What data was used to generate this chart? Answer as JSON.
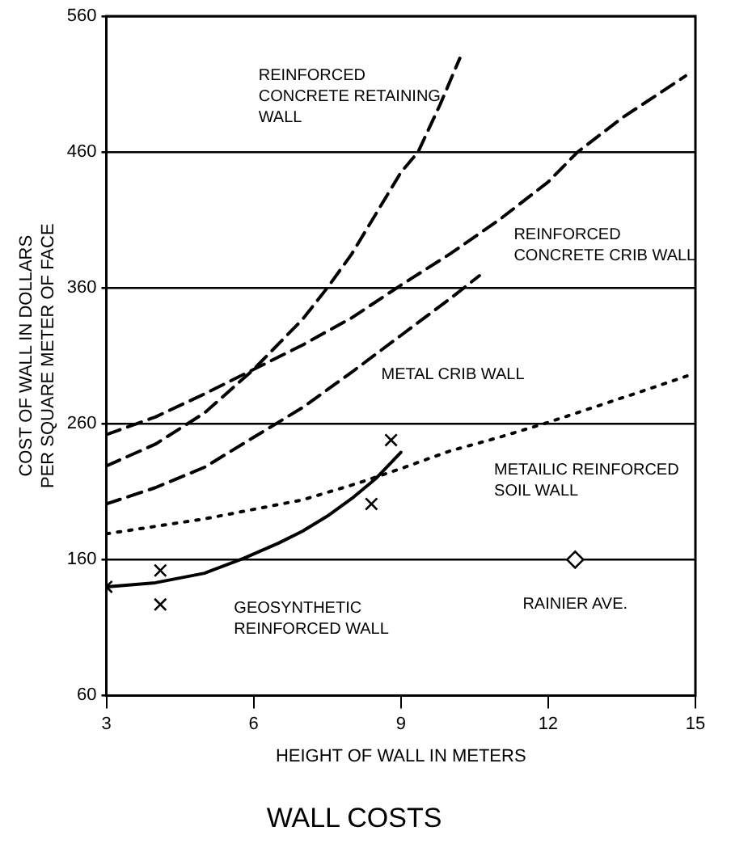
{
  "chart_data": {
    "type": "line",
    "title": "WALL COSTS",
    "xlabel": "HEIGHT OF WALL IN METERS",
    "ylabel": "COST OF WALL IN DOLLARS\nPER SQUARE METER OF FACE",
    "xlim": [
      3,
      15
    ],
    "xticks": [
      3,
      6,
      9,
      12,
      15
    ],
    "ylim": [
      60,
      560
    ],
    "yticks": [
      60,
      160,
      260,
      360,
      460,
      560
    ],
    "grid": "y",
    "legend": false,
    "series": [
      {
        "name": "REINFORCED CONCRETE RETAINING WALL",
        "color": "#000000",
        "line_style": "dashed",
        "marker": "none",
        "x": [
          3,
          4,
          5,
          6,
          7,
          7.5,
          8,
          8.5,
          9,
          9.35,
          9.8,
          10.2
        ],
        "values": [
          229,
          245,
          268,
          300,
          337,
          360,
          385,
          415,
          445,
          460,
          495,
          529
        ]
      },
      {
        "name": "REINFORCED CONCRETE CRIB WALL",
        "color": "#000000",
        "line_style": "dashed",
        "marker": "none",
        "x": [
          3,
          4,
          5,
          6,
          7,
          8,
          9,
          10,
          11,
          12,
          12.6,
          13.5,
          14.8
        ],
        "values": [
          252,
          265,
          282,
          300,
          318,
          338,
          362,
          385,
          410,
          438,
          460,
          485,
          516
        ]
      },
      {
        "name": "METAL CRIB WALL",
        "color": "#000000",
        "line_style": "dashed",
        "marker": "none",
        "x": [
          3,
          4,
          5,
          6,
          7,
          8,
          9,
          10,
          10.6
        ],
        "values": [
          201,
          213,
          228,
          250,
          272,
          298,
          325,
          352,
          369
        ]
      },
      {
        "name": "METAILIC REINFORCED SOIL WALL",
        "color": "#000000",
        "line_style": "dotted",
        "marker": "none",
        "x": [
          3,
          5,
          7,
          8.1,
          9,
          10,
          11,
          12,
          13,
          14,
          14.9
        ],
        "values": [
          179,
          190,
          204,
          216,
          227,
          240,
          250,
          261,
          273,
          285,
          296
        ]
      },
      {
        "name": "GEOSYNTHETIC REINFORCED WALL",
        "color": "#000000",
        "line_style": "solid",
        "marker": "none",
        "x": [
          3,
          4,
          5,
          5.8,
          6.5,
          7,
          7.5,
          8,
          8.5,
          9
        ],
        "values": [
          140,
          143,
          150,
          161,
          172,
          181,
          192,
          205,
          220,
          239
        ]
      },
      {
        "type": "scatter",
        "color": "#000000",
        "marker": "cross",
        "x": [
          3,
          4.1,
          4.1,
          8.8,
          8.4
        ],
        "values": [
          140,
          152,
          127,
          248,
          201
        ]
      },
      {
        "type": "scatter",
        "name": "RAINIER AVE.",
        "color": "#000000",
        "marker": "diamond",
        "x": [
          12.55
        ],
        "values": [
          160
        ]
      }
    ]
  }
}
